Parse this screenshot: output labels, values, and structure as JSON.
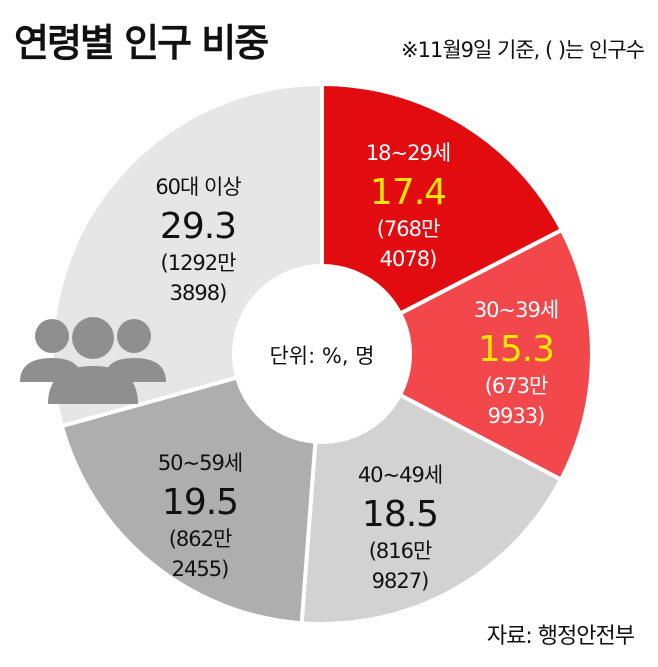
{
  "title": "연령별 인구 비중",
  "note": "※11월9일 기준, ( )는 인구수",
  "source": "자료: 행정안전부",
  "center_label": "단위: %, 명",
  "colors": {
    "red_dark": "#e10b10",
    "red_light": "#f2474b",
    "gray_light": "#d2d2d2",
    "gray_mid": "#aeaeae",
    "gray_pale": "#e6e6e6",
    "highlight": "#ffe600",
    "icon_gray": "#8f8f8f"
  },
  "chart_data": {
    "type": "pie",
    "title": "연령별 인구 비중",
    "unit": "%, 명",
    "categories": [
      "18~29세",
      "30~39세",
      "40~49세",
      "50~59세",
      "60대 이상"
    ],
    "values": [
      17.4,
      15.3,
      18.5,
      19.5,
      29.3
    ],
    "population": [
      [
        "768만",
        "4078"
      ],
      [
        "673만",
        "9933"
      ],
      [
        "816만",
        "9827"
      ],
      [
        "862만",
        "2455"
      ],
      [
        "1292만",
        "3898"
      ]
    ],
    "slice_colors": [
      "#e10b10",
      "#f2474b",
      "#d2d2d2",
      "#aeaeae",
      "#e6e6e6"
    ],
    "value_colors": [
      "#ffe600",
      "#ffe600",
      "#111111",
      "#111111",
      "#111111"
    ],
    "label_colors": [
      "#ffffff",
      "#ffffff",
      "#111111",
      "#111111",
      "#111111"
    ]
  }
}
